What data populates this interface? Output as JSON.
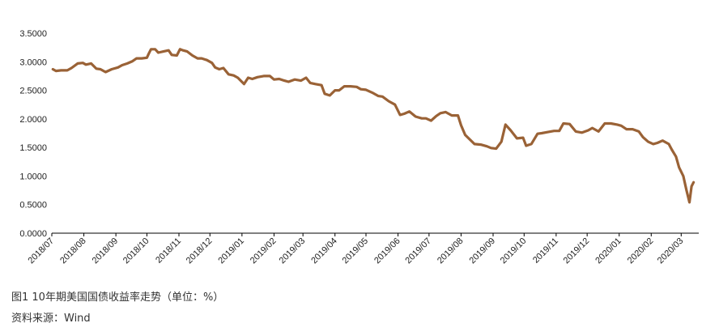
{
  "caption": {
    "figure": "图1   10年期美国国债收益率走势（单位：%）",
    "source": "资料来源：Wind"
  },
  "colors": {
    "line": "#9a6236",
    "axis": "#000000"
  },
  "chart_data": {
    "type": "line",
    "title": "",
    "xlabel": "",
    "ylabel": "",
    "ylim": [
      0,
      3.5
    ],
    "yticks": [
      "0.0000",
      "0.5000",
      "1.0000",
      "1.5000",
      "2.0000",
      "2.5000",
      "3.0000",
      "3.5000"
    ],
    "xticks": [
      "2018/07",
      "2018/08",
      "2018/09",
      "2018/10",
      "2018/11",
      "2018/12",
      "2019/01",
      "2019/02",
      "2019/03",
      "2019/04",
      "2019/05",
      "2019/06",
      "2019/07",
      "2019/08",
      "2019/09",
      "2019/10",
      "2019/11",
      "2019/12",
      "2020/01",
      "2020/02",
      "2020/03"
    ],
    "grid": false,
    "legend": "none",
    "series": [
      {
        "x": [
          "2018-07-02",
          "2018-07-05",
          "2018-07-10",
          "2018-07-16",
          "2018-07-20",
          "2018-07-26",
          "2018-07-31",
          "2018-08-03",
          "2018-08-08",
          "2018-08-13",
          "2018-08-17",
          "2018-08-22",
          "2018-08-28",
          "2018-09-03",
          "2018-09-07",
          "2018-09-12",
          "2018-09-17",
          "2018-09-21",
          "2018-09-26",
          "2018-10-01",
          "2018-10-03",
          "2018-10-05",
          "2018-10-09",
          "2018-10-12",
          "2018-10-17",
          "2018-10-22",
          "2018-10-25",
          "2018-10-30",
          "2018-11-02",
          "2018-11-05",
          "2018-11-09",
          "2018-11-14",
          "2018-11-19",
          "2018-11-23",
          "2018-11-28",
          "2018-12-03",
          "2018-12-06",
          "2018-12-10",
          "2018-12-14",
          "2018-12-19",
          "2018-12-24",
          "2018-12-28",
          "2019-01-03",
          "2019-01-07",
          "2019-01-11",
          "2019-01-16",
          "2019-01-22",
          "2019-01-28",
          "2019-02-01",
          "2019-02-06",
          "2019-02-11",
          "2019-02-15",
          "2019-02-21",
          "2019-02-27",
          "2019-03-04",
          "2019-03-08",
          "2019-03-13",
          "2019-03-19",
          "2019-03-22",
          "2019-03-27",
          "2019-04-01",
          "2019-04-05",
          "2019-04-10",
          "2019-04-16",
          "2019-04-22",
          "2019-04-26",
          "2019-05-01",
          "2019-05-07",
          "2019-05-13",
          "2019-05-17",
          "2019-05-23",
          "2019-05-29",
          "2019-06-03",
          "2019-06-07",
          "2019-06-12",
          "2019-06-18",
          "2019-06-24",
          "2019-06-28",
          "2019-07-03",
          "2019-07-08",
          "2019-07-12",
          "2019-07-17",
          "2019-07-23",
          "2019-07-29",
          "2019-08-01",
          "2019-08-05",
          "2019-08-09",
          "2019-08-14",
          "2019-08-20",
          "2019-08-26",
          "2019-08-30",
          "2019-09-04",
          "2019-09-09",
          "2019-09-13",
          "2019-09-18",
          "2019-09-24",
          "2019-09-30",
          "2019-10-03",
          "2019-10-08",
          "2019-10-14",
          "2019-10-18",
          "2019-10-24",
          "2019-10-30",
          "2019-11-04",
          "2019-11-08",
          "2019-11-14",
          "2019-11-20",
          "2019-11-26",
          "2019-12-02",
          "2019-12-06",
          "2019-12-12",
          "2019-12-18",
          "2019-12-24",
          "2019-12-30",
          "2020-01-03",
          "2020-01-08",
          "2020-01-14",
          "2020-01-20",
          "2020-01-24",
          "2020-01-29",
          "2020-02-03",
          "2020-02-07",
          "2020-02-12",
          "2020-02-18",
          "2020-02-21",
          "2020-02-25",
          "2020-02-28",
          "2020-03-03",
          "2020-03-06",
          "2020-03-09",
          "2020-03-11",
          "2020-03-13"
        ],
        "values": [
          2.87,
          2.84,
          2.85,
          2.85,
          2.89,
          2.97,
          2.98,
          2.95,
          2.97,
          2.88,
          2.87,
          2.82,
          2.87,
          2.9,
          2.94,
          2.97,
          3.01,
          3.06,
          3.06,
          3.07,
          3.15,
          3.22,
          3.22,
          3.16,
          3.18,
          3.2,
          3.12,
          3.11,
          3.22,
          3.2,
          3.18,
          3.11,
          3.06,
          3.06,
          3.03,
          2.98,
          2.9,
          2.87,
          2.89,
          2.78,
          2.76,
          2.72,
          2.61,
          2.72,
          2.7,
          2.73,
          2.75,
          2.75,
          2.69,
          2.7,
          2.67,
          2.65,
          2.69,
          2.67,
          2.72,
          2.63,
          2.61,
          2.59,
          2.44,
          2.41,
          2.5,
          2.5,
          2.57,
          2.57,
          2.56,
          2.52,
          2.51,
          2.46,
          2.4,
          2.39,
          2.31,
          2.25,
          2.07,
          2.09,
          2.13,
          2.04,
          2.01,
          2.01,
          1.97,
          2.05,
          2.1,
          2.12,
          2.06,
          2.06,
          1.89,
          1.72,
          1.65,
          1.56,
          1.55,
          1.52,
          1.49,
          1.48,
          1.6,
          1.9,
          1.8,
          1.66,
          1.67,
          1.53,
          1.56,
          1.74,
          1.75,
          1.77,
          1.79,
          1.79,
          1.92,
          1.91,
          1.78,
          1.76,
          1.8,
          1.84,
          1.78,
          1.92,
          1.92,
          1.9,
          1.88,
          1.82,
          1.82,
          1.78,
          1.68,
          1.6,
          1.56,
          1.58,
          1.62,
          1.56,
          1.46,
          1.34,
          1.15,
          1.0,
          0.76,
          0.54,
          0.82,
          0.89
        ]
      }
    ]
  }
}
